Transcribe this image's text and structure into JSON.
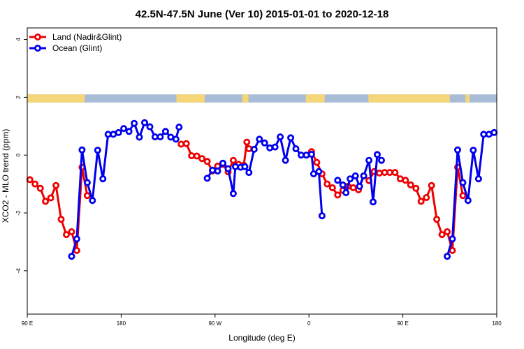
{
  "chart_data": {
    "type": "line",
    "title": "42.5N-47.5N June (Ver 10)   2015-01-01 to 2020-12-18",
    "xlabel": "Longitude (deg E)",
    "ylabel": "XCO2 - MLO trend (ppm)",
    "xlim": [
      90,
      540
    ],
    "ylim": [
      -5.5,
      4.4
    ],
    "x_ticks": [
      {
        "value": 90,
        "label": "90 E"
      },
      {
        "value": 180,
        "label": "180"
      },
      {
        "value": 270,
        "label": "90 W"
      },
      {
        "value": 360,
        "label": "0"
      },
      {
        "value": 450,
        "label": "90 E"
      },
      {
        "value": 540,
        "label": "180"
      }
    ],
    "y_ticks": [
      {
        "value": -4,
        "label": "-4"
      },
      {
        "value": -2,
        "label": "-2"
      },
      {
        "value": 0,
        "label": "0"
      },
      {
        "value": 2,
        "label": "2"
      },
      {
        "value": 4,
        "label": "4"
      }
    ],
    "legend_position": "top-left",
    "surface_band": {
      "y_range": [
        1.82,
        2.1
      ],
      "land_color": "#f5d77a",
      "ocean_color": "#a9bcd6",
      "land_segments": [
        [
          90,
          145
        ],
        [
          233,
          260
        ],
        [
          296,
          302
        ],
        [
          357,
          375
        ],
        [
          417,
          495
        ],
        [
          510,
          514
        ]
      ]
    },
    "series": [
      {
        "name": "Land (Nadir&Glint)",
        "color": "#ee0000",
        "segments": [
          [
            [
              92.5,
              -0.85
            ],
            [
              97.5,
              -1.0
            ],
            [
              102.5,
              -1.15
            ],
            [
              107.5,
              -1.6
            ],
            [
              112.5,
              -1.48
            ],
            [
              117.5,
              -1.05
            ],
            [
              122.5,
              -2.22
            ],
            [
              127.5,
              -2.75
            ],
            [
              132.5,
              -2.65
            ],
            [
              137.5,
              -3.3
            ],
            [
              142.5,
              -0.42
            ],
            [
              147.5,
              -1.4
            ]
          ],
          [
            [
              237.5,
              0.38
            ],
            [
              242.5,
              0.4
            ],
            [
              247.5,
              -0.02
            ],
            [
              252.5,
              -0.03
            ],
            [
              257.5,
              -0.12
            ],
            [
              262.5,
              -0.22
            ],
            [
              267.5,
              -0.55
            ],
            [
              272.5,
              -0.38
            ],
            [
              277.5,
              -0.32
            ],
            [
              282.5,
              -0.58
            ],
            [
              287.5,
              -0.18
            ],
            [
              292.5,
              -0.32
            ],
            [
              297.5,
              -0.35
            ],
            [
              300.5,
              0.45
            ],
            [
              302.5,
              0.22
            ]
          ],
          [
            [
              362.5,
              0.12
            ],
            [
              367.5,
              -0.25
            ],
            [
              372.5,
              -0.65
            ],
            [
              377.5,
              -1.0
            ],
            [
              382.5,
              -1.13
            ],
            [
              387.5,
              -1.38
            ],
            [
              392.5,
              -1.22
            ],
            [
              397.5,
              -1.08
            ],
            [
              402.5,
              -1.13
            ],
            [
              407.5,
              -1.2
            ],
            [
              412.5,
              -0.72
            ],
            [
              417.5,
              -0.88
            ],
            [
              422.5,
              -0.57
            ],
            [
              427.5,
              -0.62
            ],
            [
              432.5,
              -0.6
            ],
            [
              437.5,
              -0.6
            ],
            [
              442.5,
              -0.6
            ],
            [
              447.5,
              -0.82
            ],
            [
              452.5,
              -0.87
            ],
            [
              457.5,
              -1.03
            ],
            [
              462.5,
              -1.15
            ],
            [
              467.5,
              -1.6
            ],
            [
              472.5,
              -1.47
            ],
            [
              477.5,
              -1.05
            ],
            [
              482.5,
              -2.22
            ],
            [
              487.5,
              -2.75
            ],
            [
              492.5,
              -2.65
            ],
            [
              497.5,
              -3.3
            ],
            [
              502.5,
              -0.42
            ],
            [
              507.5,
              -1.4
            ]
          ]
        ]
      },
      {
        "name": "Ocean (Glint)",
        "color": "#0000ee",
        "segments": [
          [
            [
              132.5,
              -3.5
            ],
            [
              137.5,
              -2.9
            ],
            [
              142.5,
              0.18
            ],
            [
              147.5,
              -0.95
            ],
            [
              152.5,
              -1.57
            ],
            [
              157.5,
              0.17
            ],
            [
              162.5,
              -0.82
            ],
            [
              167.5,
              0.72
            ],
            [
              172.5,
              0.72
            ],
            [
              177.5,
              0.78
            ],
            [
              182.5,
              0.92
            ],
            [
              187.5,
              0.82
            ],
            [
              192.5,
              1.1
            ],
            [
              197.5,
              0.62
            ],
            [
              202.5,
              1.12
            ],
            [
              207.5,
              0.98
            ],
            [
              212.5,
              0.63
            ],
            [
              217.5,
              0.63
            ],
            [
              222.5,
              0.82
            ],
            [
              227.5,
              0.62
            ],
            [
              232.5,
              0.55
            ],
            [
              235.5,
              0.97
            ]
          ],
          [
            [
              262.5,
              -0.8
            ],
            [
              267.5,
              -0.52
            ],
            [
              272.5,
              -0.55
            ],
            [
              277.5,
              -0.28
            ],
            [
              282.5,
              -0.47
            ],
            [
              287.5,
              -1.33
            ],
            [
              289.5,
              -0.4
            ],
            [
              294.5,
              -0.42
            ],
            [
              298.5,
              -0.4
            ],
            [
              302.5,
              -0.6
            ],
            [
              307.5,
              0.2
            ],
            [
              312.5,
              0.55
            ],
            [
              317.5,
              0.42
            ],
            [
              322.5,
              0.25
            ],
            [
              327.5,
              0.28
            ],
            [
              332.5,
              0.63
            ],
            [
              337.5,
              -0.18
            ],
            [
              342.5,
              0.6
            ],
            [
              347.5,
              0.22
            ],
            [
              352.5,
              0.0
            ],
            [
              357.5,
              0.0
            ],
            [
              362.5,
              0.03
            ],
            [
              364.5,
              -0.65
            ],
            [
              369.5,
              -0.57
            ],
            [
              372.5,
              -2.1
            ]
          ],
          [
            [
              387.5,
              -0.87
            ],
            [
              392.5,
              -1.03
            ],
            [
              395.5,
              -1.3
            ],
            [
              399.5,
              -0.82
            ],
            [
              404.5,
              -0.72
            ],
            [
              408.5,
              -1.08
            ],
            [
              412.5,
              -0.72
            ],
            [
              417.5,
              -0.18
            ],
            [
              421.5,
              -1.62
            ],
            [
              425.5,
              0.02
            ],
            [
              429.5,
              -0.18
            ]
          ],
          [
            [
              492.5,
              -3.5
            ],
            [
              497.5,
              -2.9
            ],
            [
              502.5,
              0.18
            ],
            [
              507.5,
              -0.95
            ],
            [
              512.5,
              -1.57
            ],
            [
              517.5,
              0.17
            ],
            [
              522.5,
              -0.82
            ],
            [
              527.5,
              0.72
            ],
            [
              532.5,
              0.72
            ],
            [
              537.5,
              0.78
            ]
          ]
        ]
      }
    ]
  }
}
